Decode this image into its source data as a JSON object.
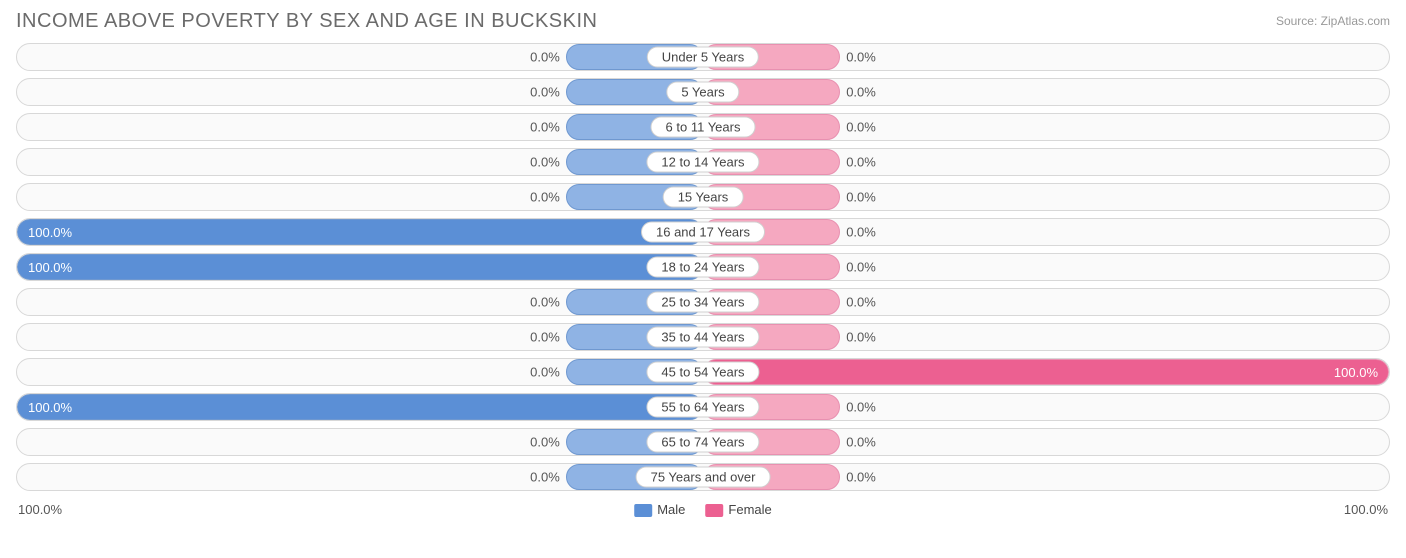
{
  "title": "INCOME ABOVE POVERTY BY SEX AND AGE IN BUCKSKIN",
  "source": "Source: ZipAtlas.com",
  "chart": {
    "type": "diverging-bar",
    "min_bar_pct": 20,
    "colors": {
      "male_fill": "#8fb3e4",
      "male_full": "#5b8fd6",
      "male_border": "#6f98d0",
      "female_fill": "#f5a8c0",
      "female_full": "#ec6091",
      "female_border": "#e890b0",
      "row_border": "#d8d8d8",
      "row_bg": "#fafafa",
      "pill_bg": "#ffffff",
      "pill_border": "#d0d0d0",
      "text": "#555555"
    },
    "categories": [
      {
        "label": "Under 5 Years",
        "male": 0.0,
        "female": 0.0
      },
      {
        "label": "5 Years",
        "male": 0.0,
        "female": 0.0
      },
      {
        "label": "6 to 11 Years",
        "male": 0.0,
        "female": 0.0
      },
      {
        "label": "12 to 14 Years",
        "male": 0.0,
        "female": 0.0
      },
      {
        "label": "15 Years",
        "male": 0.0,
        "female": 0.0
      },
      {
        "label": "16 and 17 Years",
        "male": 100.0,
        "female": 0.0
      },
      {
        "label": "18 to 24 Years",
        "male": 100.0,
        "female": 0.0
      },
      {
        "label": "25 to 34 Years",
        "male": 0.0,
        "female": 0.0
      },
      {
        "label": "35 to 44 Years",
        "male": 0.0,
        "female": 0.0
      },
      {
        "label": "45 to 54 Years",
        "male": 0.0,
        "female": 100.0
      },
      {
        "label": "55 to 64 Years",
        "male": 100.0,
        "female": 0.0
      },
      {
        "label": "65 to 74 Years",
        "male": 0.0,
        "female": 0.0
      },
      {
        "label": "75 Years and over",
        "male": 0.0,
        "female": 0.0
      }
    ],
    "axis": {
      "left": "100.0%",
      "right": "100.0%"
    },
    "legend": [
      {
        "label": "Male",
        "color": "#5b8fd6"
      },
      {
        "label": "Female",
        "color": "#ec6091"
      }
    ]
  }
}
